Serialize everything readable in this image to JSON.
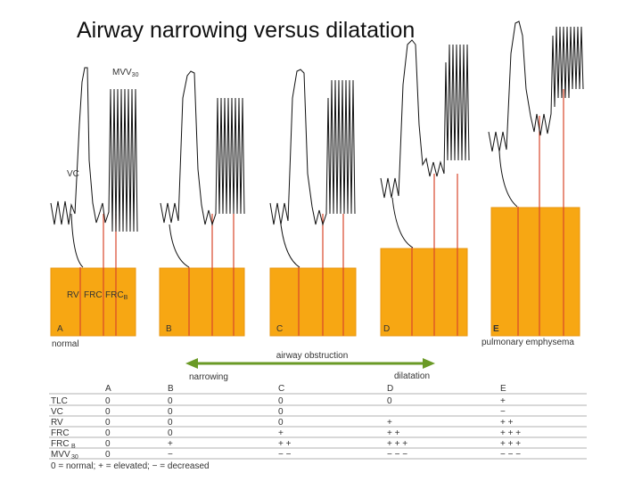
{
  "title": "Airway narrowing versus dilatation",
  "colors": {
    "box": "#f7a713",
    "box_border": "#e8950c",
    "trace": "#111111",
    "marker_line": "#d9472b",
    "arrow": "#6a9a26"
  },
  "panels": [
    {
      "letter": "A",
      "caption": "normal"
    },
    {
      "letter": "B",
      "caption": ""
    },
    {
      "letter": "C",
      "caption": ""
    },
    {
      "letter": "D",
      "caption": ""
    },
    {
      "letter": "E",
      "caption": "pulmonary emphysema"
    }
  ],
  "trace_labels": {
    "mvv": "MVV",
    "mvv_sub": "30",
    "vc": "VC"
  },
  "box_labels": {
    "rv": "RV",
    "frc": "FRC",
    "frcb": "FRC",
    "frcb_sub": "B"
  },
  "arrow": {
    "label": "airway obstruction",
    "left": "narrowing",
    "right": "dilatation"
  },
  "table": {
    "columns": [
      "A",
      "B",
      "C",
      "D",
      "E"
    ],
    "rows": [
      {
        "label": "TLC",
        "sub": "",
        "values": [
          "0",
          "0",
          "0",
          "0",
          "+"
        ]
      },
      {
        "label": "VC",
        "sub": "",
        "values": [
          "0",
          "0",
          "0",
          "",
          "−"
        ]
      },
      {
        "label": "RV",
        "sub": "",
        "values": [
          "0",
          "0",
          "0",
          "+",
          "+ +"
        ]
      },
      {
        "label": "FRC",
        "sub": "",
        "values": [
          "0",
          "0",
          "+",
          "+ +",
          "+ + +"
        ]
      },
      {
        "label": "FRC",
        "sub": "B",
        "values": [
          "0",
          "+",
          "+ +",
          "+ + +",
          "+ + +"
        ]
      },
      {
        "label": "MVV",
        "sub": "30",
        "values": [
          "0",
          "−",
          "− −",
          "− − −",
          "− − −"
        ]
      }
    ]
  },
  "legend": "0 = normal; + = elevated; − = decreased"
}
